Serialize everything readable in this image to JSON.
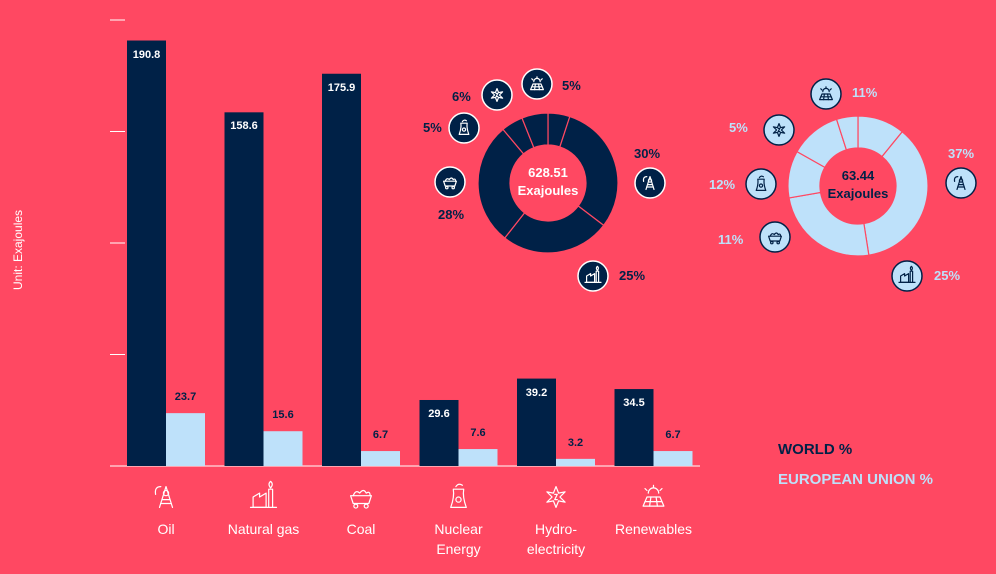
{
  "colors": {
    "background": "#FF4862",
    "world": "#002147",
    "eu": "#BEE1FA",
    "axis": "#ffffff"
  },
  "chart_data": [
    {
      "type": "bar",
      "categories": [
        "Oil",
        "Natural gas",
        "Coal",
        "Nuclear Energy",
        "Hydro-electricity",
        "Renewables"
      ],
      "category_lines": [
        [
          "Oil"
        ],
        [
          "Natural gas"
        ],
        [
          "Coal"
        ],
        [
          "Nuclear",
          "Energy"
        ],
        [
          "Hydro-",
          "electricity"
        ],
        [
          "Renewables"
        ]
      ],
      "category_icons": [
        "oil-icon",
        "natural-gas-icon",
        "coal-icon",
        "nuclear-icon",
        "hydro-icon",
        "solar-icon"
      ],
      "series": [
        {
          "name": "WORLD %",
          "values": [
            190.8,
            158.6,
            175.9,
            29.6,
            39.2,
            34.5
          ],
          "color": "#002147"
        },
        {
          "name": "EUROPEAN UNION %",
          "values": [
            23.7,
            15.6,
            6.7,
            7.6,
            3.2,
            6.7
          ],
          "color": "#BEE1FA"
        }
      ],
      "yticks": [
        0,
        50,
        100,
        150,
        200
      ],
      "ylim": [
        0,
        200
      ],
      "ylabel": "Unit: Exajoules"
    },
    {
      "type": "pie",
      "name": "World",
      "center_value": "628.51",
      "center_unit": "Exajoules",
      "slices": [
        {
          "category": "Oil",
          "percent": 30,
          "icon": "oil-icon"
        },
        {
          "category": "Natural gas",
          "percent": 25,
          "icon": "natural-gas-icon"
        },
        {
          "category": "Coal",
          "percent": 28,
          "icon": "coal-icon"
        },
        {
          "category": "Nuclear Energy",
          "percent": 5,
          "icon": "nuclear-icon"
        },
        {
          "category": "Hydro-electricity",
          "percent": 6,
          "icon": "hydro-icon"
        },
        {
          "category": "Renewables",
          "percent": 5,
          "icon": "solar-icon"
        }
      ],
      "labels": [
        "30%",
        "25%",
        "28%",
        "5%",
        "6%",
        "5%"
      ]
    },
    {
      "type": "pie",
      "name": "European Union",
      "center_value": "63.44",
      "center_unit": "Exajoules",
      "slices": [
        {
          "category": "Oil",
          "percent": 37,
          "icon": "oil-icon"
        },
        {
          "category": "Natural gas",
          "percent": 25,
          "icon": "natural-gas-icon"
        },
        {
          "category": "Coal",
          "percent": 11,
          "icon": "coal-icon"
        },
        {
          "category": "Nuclear Energy",
          "percent": 12,
          "icon": "nuclear-icon"
        },
        {
          "category": "Hydro-electricity",
          "percent": 5,
          "icon": "hydro-icon"
        },
        {
          "category": "Renewables",
          "percent": 11,
          "icon": "solar-icon"
        }
      ],
      "labels": [
        "37%",
        "25%",
        "11%",
        "12%",
        "5%",
        "11%"
      ]
    }
  ],
  "legend": {
    "world": "WORLD %",
    "eu": "EUROPEAN UNION %"
  }
}
